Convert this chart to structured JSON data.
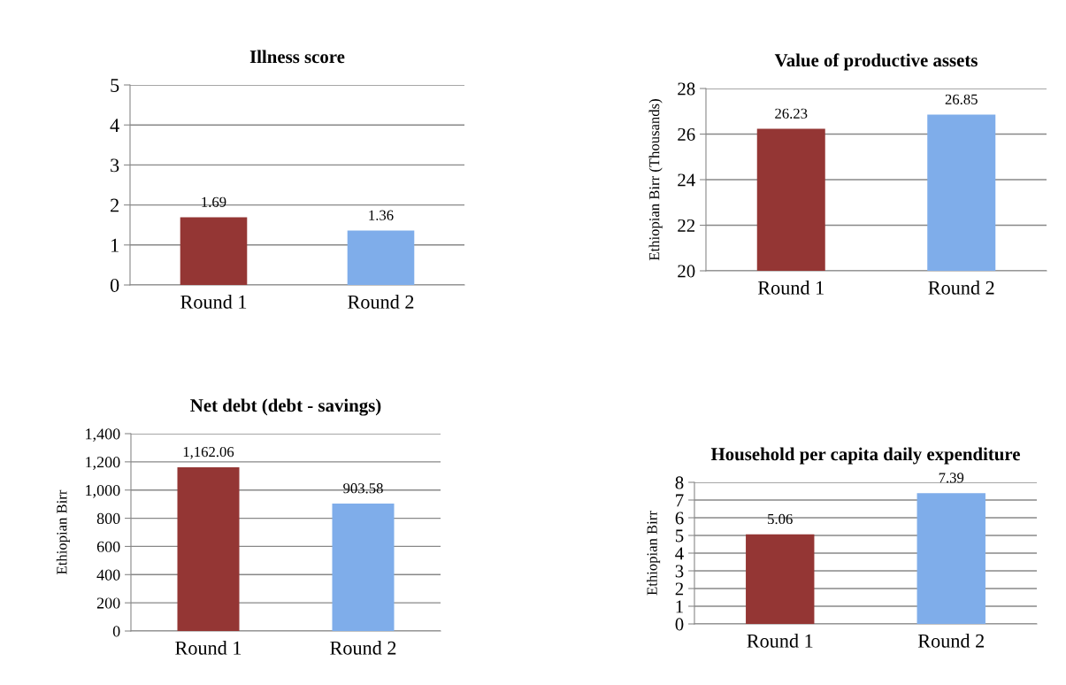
{
  "chart_data": [
    {
      "type": "bar",
      "title": "Illness score",
      "categories": [
        "Round 1",
        "Round 2"
      ],
      "values": [
        1.69,
        1.36
      ],
      "colors": [
        "#943634",
        "#7fadea"
      ],
      "ylim": [
        0,
        5
      ],
      "yticks": [
        0,
        1,
        2,
        3,
        4,
        5
      ],
      "grid": "y",
      "data_labels": true
    },
    {
      "type": "bar",
      "title": "Value of productive assets",
      "ylabel": "Ethiopian Birr (Thousands)",
      "categories": [
        "Round 1",
        "Round 2"
      ],
      "values": [
        26.23,
        26.85
      ],
      "colors": [
        "#943634",
        "#7fadea"
      ],
      "ylim": [
        20,
        28
      ],
      "yticks": [
        20,
        22,
        24,
        26,
        28
      ],
      "grid": "y",
      "data_labels": true
    },
    {
      "type": "bar",
      "title": "Net debt (debt - savings)",
      "ylabel": "Ethiopian Birr",
      "categories": [
        "Round 1",
        "Round 2"
      ],
      "values": [
        1162.06,
        903.58
      ],
      "value_labels": [
        "1,162.06",
        "903.58"
      ],
      "colors": [
        "#943634",
        "#7fadea"
      ],
      "ylim": [
        0,
        1400
      ],
      "yticks": [
        0,
        200,
        400,
        600,
        800,
        {
          "value": 1000,
          "label": "1,000"
        },
        {
          "value": 1200,
          "label": "1,200"
        },
        {
          "value": 1400,
          "label": "1,400"
        }
      ],
      "grid": "y"
    },
    {
      "type": "bar",
      "title": "Household per capita daily expenditure",
      "ylabel": "Ethiopian Birr",
      "categories": [
        "Round 1",
        "Round 2"
      ],
      "values": [
        5.06,
        7.39
      ],
      "colors": [
        "#943634",
        "#7fadea"
      ],
      "ylim": [
        0,
        8
      ],
      "yticks": [
        0,
        1,
        2,
        3,
        4,
        5,
        6,
        7,
        8
      ],
      "grid": "y",
      "data_labels": true
    }
  ]
}
